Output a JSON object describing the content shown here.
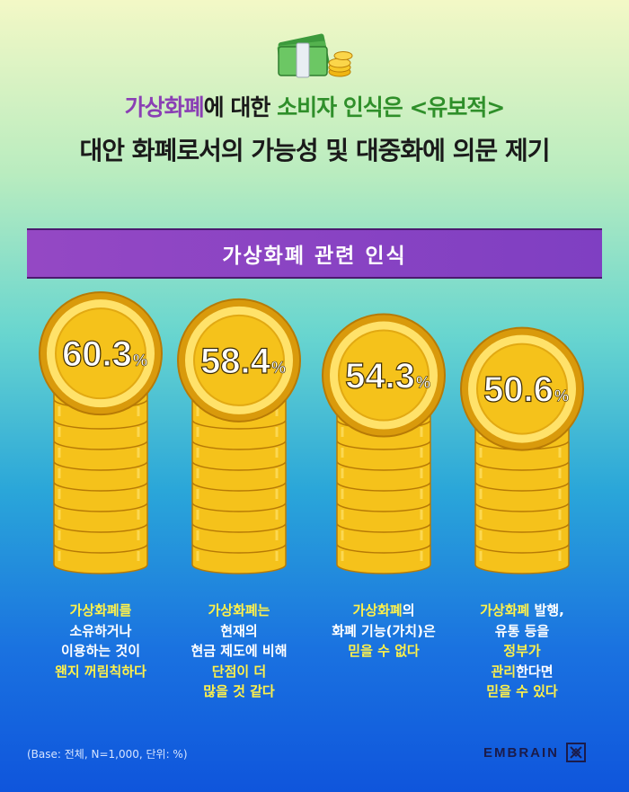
{
  "header": {
    "title_line1": [
      {
        "text": "가상화폐",
        "color": "purple"
      },
      {
        "text": "에 대한 ",
        "color": "dark"
      },
      {
        "text": "소비자 인식은 <유보적>",
        "color": "green"
      }
    ],
    "title_line2": "대안 화폐로서의 가능성 및 대중화에 의문 제기"
  },
  "banner": {
    "label": "가상화폐 관련 인식"
  },
  "chart_data": {
    "type": "bar",
    "title": "가상화폐 관련 인식",
    "unit": "%",
    "categories": [
      "가상화폐를 소유하거나 이용하는 것이 왠지 꺼림칙하다",
      "가상화폐는 현재의 현금 제도에 비해 단점이 더 많을 것 같다",
      "가상화폐의 화폐 기능(가치)은 믿을 수 없다",
      "가상화폐 발행, 유통 등을 정부가 관리한다면 믿을 수 있다"
    ],
    "values": [
      60.3,
      58.4,
      54.3,
      50.6
    ],
    "value_labels": [
      "60.3",
      "58.4",
      "54.3",
      "50.6"
    ],
    "descriptions": [
      [
        [
          {
            "t": "가상화폐를",
            "y": true
          }
        ],
        [
          {
            "t": "소유하거나",
            "y": false
          }
        ],
        [
          {
            "t": "이용하는 것이",
            "y": false
          }
        ],
        [
          {
            "t": "왠지 꺼림칙하다",
            "y": true
          }
        ]
      ],
      [
        [
          {
            "t": "가상화폐는",
            "y": true
          }
        ],
        [
          {
            "t": "현재의",
            "y": false
          }
        ],
        [
          {
            "t": "현금 제도에 비해",
            "y": false
          }
        ],
        [
          {
            "t": "단점이 더",
            "y": true
          }
        ],
        [
          {
            "t": "많을 것 같다",
            "y": true
          }
        ]
      ],
      [
        [
          {
            "t": "가상화폐",
            "y": true
          },
          {
            "t": "의",
            "y": false
          }
        ],
        [
          {
            "t": "화폐 기능(가치)은",
            "y": false
          }
        ],
        [
          {
            "t": "믿을 수 없다",
            "y": true
          }
        ]
      ],
      [
        [
          {
            "t": "가상화폐",
            "y": true
          },
          {
            "t": " 발행,",
            "y": false
          }
        ],
        [
          {
            "t": "유통 등을",
            "y": false
          }
        ],
        [
          {
            "t": "정부가",
            "y": true
          }
        ],
        [
          {
            "t": "관리",
            "y": true
          },
          {
            "t": "한다면",
            "y": false
          }
        ],
        [
          {
            "t": "믿을 수 있다",
            "y": true
          }
        ]
      ]
    ],
    "source_note": "(Base: 전체, N=1,000, 단위: %)"
  },
  "footer": {
    "brand": "EMBRAIN"
  },
  "colors": {
    "purple": "#8a3fb4",
    "green": "#2f8f2a",
    "dark": "#1a1a1a",
    "gold_light": "#ffe26a",
    "gold": "#f5c21b",
    "gold_dark": "#d99a0c",
    "gold_edge": "#b77a06",
    "highlight_yellow": "#fff14a"
  }
}
